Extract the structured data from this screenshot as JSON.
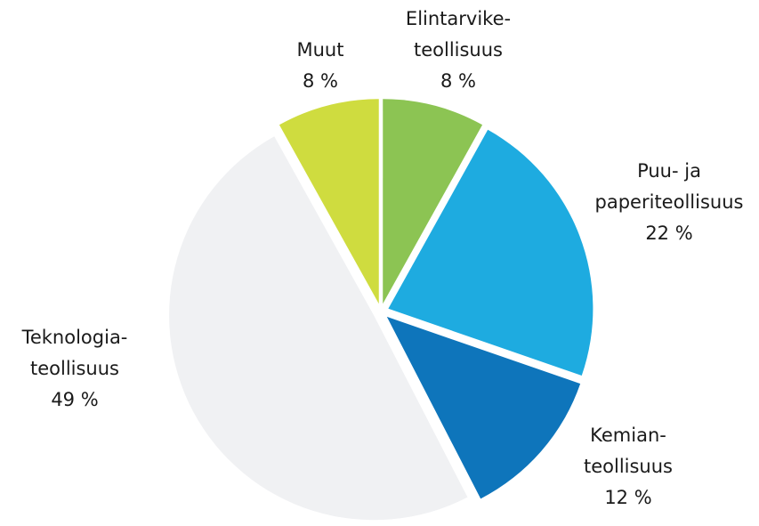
{
  "chart_data": {
    "type": "pie",
    "categories": [
      [
        "Elintarvike-",
        "teollisuus"
      ],
      [
        "Puu- ja",
        "paperiteollisuus"
      ],
      [
        "Kemian-",
        "teollisuus"
      ],
      [
        "Teknologia-",
        "teollisuus"
      ],
      [
        "Muut"
      ]
    ],
    "values": [
      8,
      22,
      12,
      49,
      8
    ],
    "value_labels": [
      "8 %",
      "22 %",
      "12 %",
      "49 %",
      "8 %"
    ],
    "colors": [
      "#8cc453",
      "#1eabe0",
      "#0e75bb",
      "#f0f1f3",
      "#cfdc3f"
    ]
  }
}
